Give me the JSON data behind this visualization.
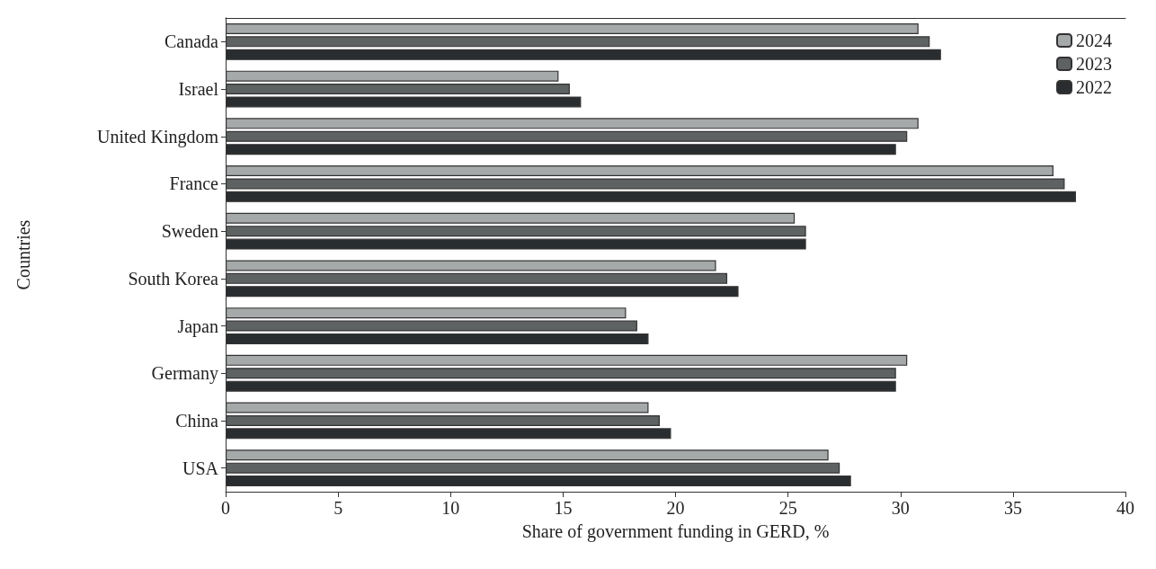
{
  "chart_data": {
    "type": "bar",
    "orientation": "horizontal",
    "xlabel": "Share of government funding in GERD, %",
    "ylabel": "Countries",
    "categories": [
      "Canada",
      "Israel",
      "United Kingdom",
      "France",
      "Sweden",
      "South Korea",
      "Japan",
      "Germany",
      "China",
      "USA"
    ],
    "series": [
      {
        "name": "2024",
        "color": "#a6a9a9",
        "values": [
          30.8,
          14.8,
          30.8,
          36.8,
          25.3,
          21.8,
          17.8,
          30.3,
          18.8,
          26.8
        ]
      },
      {
        "name": "2023",
        "color": "#5e6262",
        "values": [
          31.3,
          15.3,
          30.3,
          37.3,
          25.8,
          22.3,
          18.3,
          29.8,
          19.3,
          27.3
        ]
      },
      {
        "name": "2022",
        "color": "#2a2d30",
        "values": [
          31.8,
          15.8,
          29.8,
          37.8,
          25.8,
          22.8,
          18.8,
          29.8,
          19.8,
          27.8
        ]
      }
    ],
    "xlim": [
      0,
      40
    ],
    "xticks": [
      0,
      5,
      10,
      15,
      20,
      25,
      30,
      35,
      40
    ],
    "grid": false,
    "legend": "top right"
  }
}
